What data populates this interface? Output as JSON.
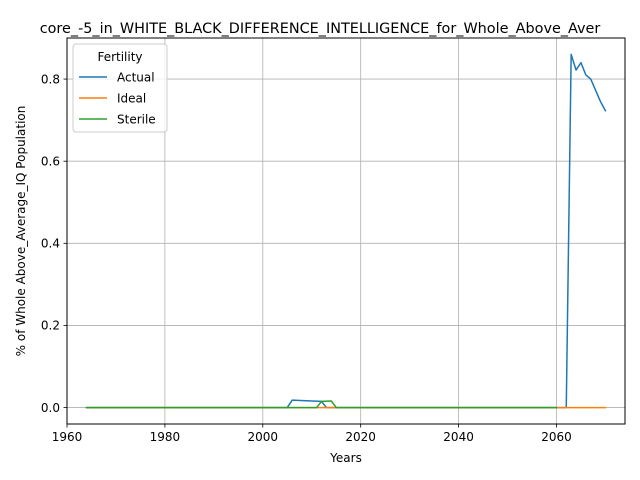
{
  "chart_data": {
    "type": "line",
    "title": "core_-5_in_WHITE_BLACK_DIFFERENCE_INTELLIGENCE_for_Whole_Above_Aver",
    "xlabel": "Years",
    "ylabel": "% of Whole Above_Average_IQ Population",
    "xlim": [
      1960,
      2074
    ],
    "ylim": [
      -0.04,
      0.9
    ],
    "xticks": [
      1960,
      1980,
      2000,
      2020,
      2040,
      2060
    ],
    "xtick_labels": [
      "1960",
      "1980",
      "2000",
      "2020",
      "2040",
      "2060"
    ],
    "yticks": [
      0.0,
      0.2,
      0.4,
      0.6,
      0.8
    ],
    "ytick_labels": [
      "0.0",
      "0.2",
      "0.4",
      "0.6",
      "0.8"
    ],
    "grid": true,
    "legend": {
      "title": "Fertility",
      "placement": "top-left"
    },
    "series": [
      {
        "name": "Actual",
        "color": "#1f77b4",
        "points": [
          [
            1964,
            0.0
          ],
          [
            2005,
            0.0
          ],
          [
            2006,
            0.018
          ],
          [
            2010,
            0.016
          ],
          [
            2012,
            0.015
          ],
          [
            2013,
            0.0
          ],
          [
            2062,
            0.0
          ],
          [
            2063,
            0.86
          ],
          [
            2064,
            0.822
          ],
          [
            2065,
            0.84
          ],
          [
            2066,
            0.81
          ],
          [
            2067,
            0.8
          ],
          [
            2069,
            0.745
          ],
          [
            2070,
            0.723
          ]
        ]
      },
      {
        "name": "Ideal",
        "color": "#ff7f0e",
        "points": [
          [
            1964,
            0.0
          ],
          [
            2070,
            0.0
          ]
        ]
      },
      {
        "name": "Sterile",
        "color": "#2ca02c",
        "points": [
          [
            1964,
            0.0
          ],
          [
            2011,
            0.0
          ],
          [
            2012,
            0.015
          ],
          [
            2014,
            0.016
          ],
          [
            2015,
            0.0
          ],
          [
            2060,
            0.0
          ]
        ]
      }
    ]
  }
}
